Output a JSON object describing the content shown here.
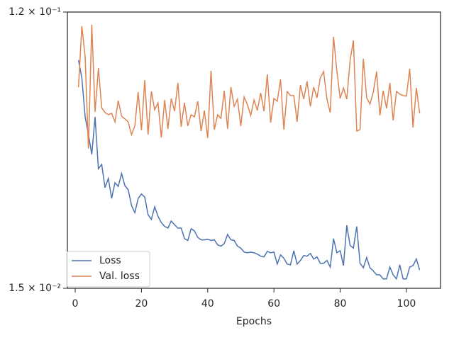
{
  "chart_data": {
    "type": "line",
    "xlabel": "Epochs",
    "x": [
      1,
      2,
      3,
      4,
      5,
      6,
      7,
      8,
      9,
      10,
      11,
      12,
      13,
      14,
      15,
      16,
      17,
      18,
      19,
      20,
      21,
      22,
      23,
      24,
      25,
      26,
      27,
      28,
      29,
      30,
      31,
      32,
      33,
      34,
      35,
      36,
      37,
      38,
      39,
      40,
      41,
      42,
      43,
      44,
      45,
      46,
      47,
      48,
      49,
      50,
      51,
      52,
      53,
      54,
      55,
      56,
      57,
      58,
      59,
      60,
      61,
      62,
      63,
      64,
      65,
      66,
      67,
      68,
      69,
      70,
      71,
      72,
      73,
      74,
      75,
      76,
      77,
      78,
      79,
      80,
      81,
      82,
      83,
      84,
      85,
      86,
      87,
      88,
      89,
      90,
      91,
      92,
      93,
      94,
      95,
      96,
      97,
      98,
      99,
      100,
      101,
      102,
      103,
      104
    ],
    "series": [
      {
        "name": "Loss",
        "color": "#4c72b0",
        "values": [
          0.0835,
          0.0731,
          0.0545,
          0.0477,
          0.0411,
          0.0545,
          0.0369,
          0.0381,
          0.032,
          0.0343,
          0.0295,
          0.0332,
          0.0323,
          0.0356,
          0.0325,
          0.0315,
          0.028,
          0.0265,
          0.0295,
          0.0305,
          0.0298,
          0.0261,
          0.0252,
          0.0277,
          0.0258,
          0.0246,
          0.0239,
          0.0236,
          0.0249,
          0.0242,
          0.0236,
          0.0236,
          0.0218,
          0.0215,
          0.0235,
          0.0231,
          0.022,
          0.0216,
          0.0216,
          0.0217,
          0.0215,
          0.0216,
          0.0208,
          0.0206,
          0.021,
          0.0225,
          0.0216,
          0.0215,
          0.0206,
          0.0203,
          0.0197,
          0.0196,
          0.0197,
          0.0196,
          0.0194,
          0.0191,
          0.019,
          0.0198,
          0.0196,
          0.0197,
          0.018,
          0.0193,
          0.0188,
          0.018,
          0.0179,
          0.0199,
          0.018,
          0.0185,
          0.0192,
          0.0191,
          0.0195,
          0.0187,
          0.019,
          0.0181,
          0.0181,
          0.0185,
          0.0176,
          0.0218,
          0.0196,
          0.0199,
          0.0178,
          0.0241,
          0.0207,
          0.0203,
          0.0239,
          0.0181,
          0.0175,
          0.0189,
          0.0175,
          0.0171,
          0.0166,
          0.0166,
          0.0161,
          0.0161,
          0.0176,
          0.0166,
          0.0161,
          0.0179,
          0.0161,
          0.0161,
          0.0176,
          0.0178,
          0.0187,
          0.0172
        ]
      },
      {
        "name": "Val. loss",
        "color": "#dd8452",
        "values": [
          0.0682,
          0.1079,
          0.0858,
          0.0429,
          0.1091,
          0.0566,
          0.0787,
          0.0584,
          0.0563,
          0.0554,
          0.056,
          0.0525,
          0.0616,
          0.0548,
          0.0537,
          0.0525,
          0.0477,
          0.0509,
          0.0657,
          0.0493,
          0.0719,
          0.0477,
          0.066,
          0.0575,
          0.0606,
          0.0467,
          0.0619,
          0.0498,
          0.0626,
          0.0569,
          0.0704,
          0.0506,
          0.0606,
          0.0509,
          0.0554,
          0.0545,
          0.0613,
          0.049,
          0.0572,
          0.0465,
          0.0771,
          0.0495,
          0.0554,
          0.0539,
          0.0664,
          0.0498,
          0.0682,
          0.059,
          0.0623,
          0.0509,
          0.0633,
          0.0597,
          0.0551,
          0.0619,
          0.0572,
          0.0653,
          0.0569,
          0.0751,
          0.0522,
          0.0626,
          0.0613,
          0.0723,
          0.0495,
          0.066,
          0.064,
          0.064,
          0.0525,
          0.0693,
          0.0623,
          0.0712,
          0.059,
          0.0682,
          0.0629,
          0.0731,
          0.0767,
          0.0623,
          0.0563,
          0.0996,
          0.0771,
          0.0626,
          0.0678,
          0.0623,
          0.0835,
          0.0969,
          0.049,
          0.0495,
          0.0844,
          0.0629,
          0.06,
          0.0657,
          0.0767,
          0.0551,
          0.0664,
          0.0581,
          0.0704,
          0.0531,
          0.066,
          0.0647,
          0.064,
          0.0637,
          0.0783,
          0.0503,
          0.0678,
          0.056
        ]
      }
    ],
    "xlim": [
      -2.36,
      110.3
    ],
    "xticks": [
      0,
      20,
      40,
      60,
      80,
      100
    ],
    "ylim": [
      0.015,
      0.12
    ],
    "ylog": true,
    "yticks": [
      {
        "value": 0.12,
        "label": "1.2 × 10⁻¹"
      },
      {
        "value": 0.015,
        "label": "1.5 × 10⁻²"
      }
    ],
    "legend": "lower left"
  }
}
